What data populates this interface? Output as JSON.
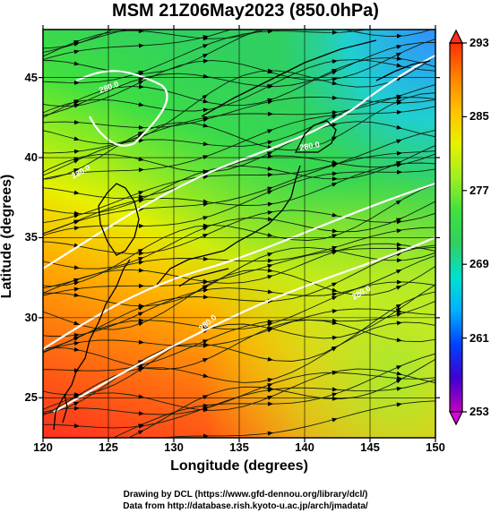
{
  "title": "MSM 21Z06May2023 (850.0hPa)",
  "x_axis": {
    "label": "Longitude (degrees)",
    "ticks": [
      {
        "value": 120,
        "label": "120"
      },
      {
        "value": 125,
        "label": "125"
      },
      {
        "value": 130,
        "label": "130"
      },
      {
        "value": 135,
        "label": "135"
      },
      {
        "value": 140,
        "label": "140"
      },
      {
        "value": 145,
        "label": "145"
      },
      {
        "value": 150,
        "label": "150"
      }
    ]
  },
  "y_axis": {
    "label": "Latitude  (degrees)",
    "ticks": [
      {
        "value": 25,
        "label": "25"
      },
      {
        "value": 30,
        "label": "30"
      },
      {
        "value": 35,
        "label": "35"
      },
      {
        "value": 40,
        "label": "40"
      },
      {
        "value": 45,
        "label": "45"
      }
    ]
  },
  "colorbar": {
    "ticks": [
      {
        "value": 293,
        "label": "293"
      },
      {
        "value": 285,
        "label": "285"
      },
      {
        "value": 277,
        "label": "277"
      },
      {
        "value": 269,
        "label": "269"
      },
      {
        "value": 261,
        "label": "261"
      },
      {
        "value": 253,
        "label": "253"
      }
    ],
    "stops": [
      "#c000c0",
      "#4000d0",
      "#0040ff",
      "#00b0ff",
      "#00e0d0",
      "#30d060",
      "#40e040",
      "#a0f020",
      "#e8f000",
      "#ffc000",
      "#ff8000",
      "#ff3000"
    ]
  },
  "contour_labels": [
    "280.0",
    "280.0",
    "280.0",
    "280.0",
    "280.0"
  ],
  "credits": {
    "line1": "Drawing by DCL (https://www.gfd-dennou.org/library/dcl/)",
    "line2": "Data from http://database.rish.kyoto-u.ac.jp/arch/jmadata/"
  }
}
